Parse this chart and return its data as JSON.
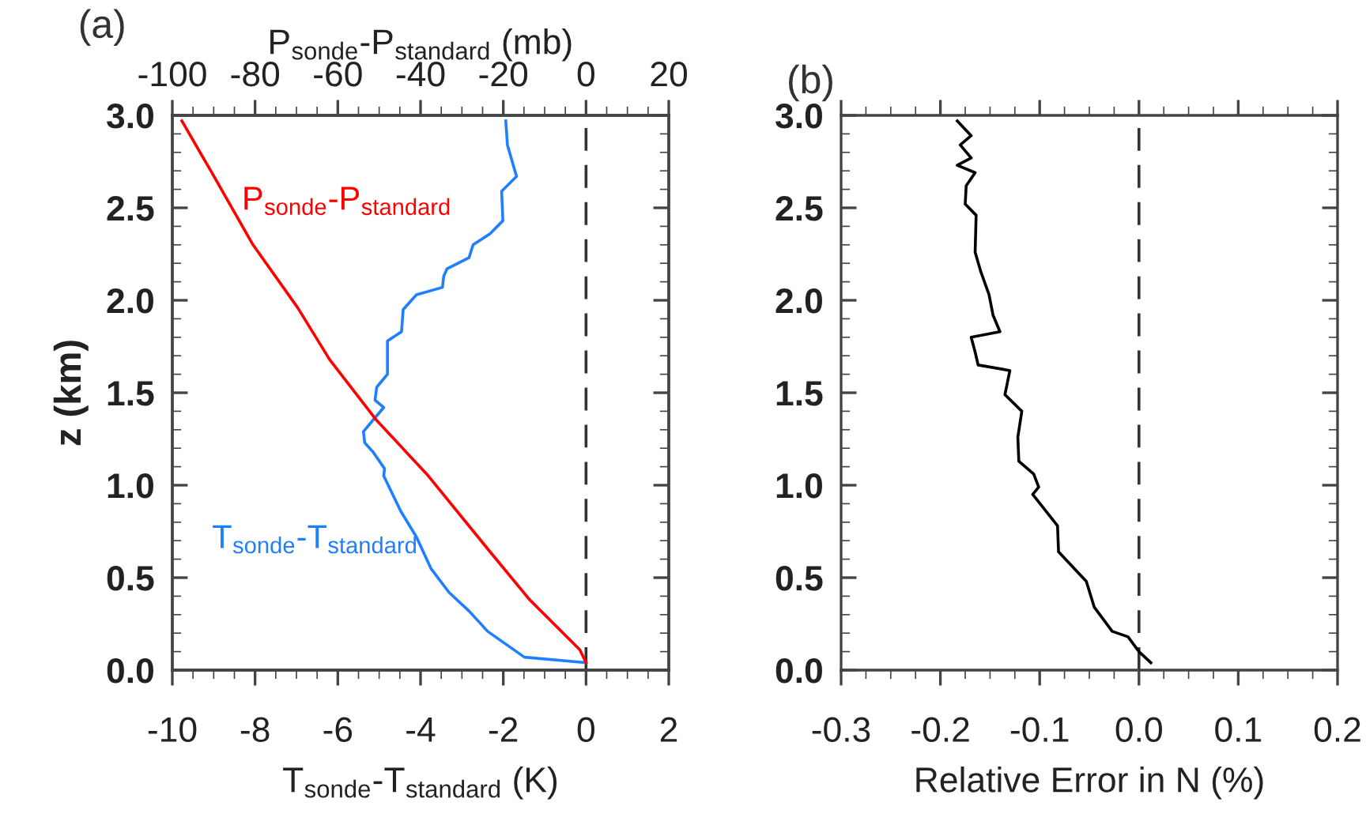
{
  "chart_data": [
    {
      "type": "line",
      "title": "(a)",
      "xlabel": "T$_{sonde}$-T$_{standard}$ (K)",
      "x2label": "P$_{sonde}$-P$_{standard}$ (mb)",
      "ylabel": "z (km)",
      "xlim": [
        -10,
        2
      ],
      "xticks": [
        -10,
        -8,
        -6,
        -4,
        -2,
        0,
        2
      ],
      "x2lim": [
        -100,
        20
      ],
      "x2ticks": [
        -100,
        -80,
        -60,
        -40,
        -20,
        0,
        20
      ],
      "ylim": [
        0,
        3.0
      ],
      "yticks": [
        {
          "value": 0,
          "label": "0.0"
        },
        0.5,
        {
          "value": 1,
          "label": "1.0"
        },
        1.5,
        {
          "value": 2,
          "label": "2.0"
        },
        2.5,
        {
          "value": 3,
          "label": "3.0"
        }
      ],
      "grid": false,
      "legend": false,
      "ref_lines": [
        {
          "axis": "x",
          "value": 0,
          "color": "#333333",
          "line_style": "dashed"
        }
      ],
      "series": [
        {
          "name": "P$_{sonde}$-P$_{standard}$",
          "color": "#ff0000",
          "axis": "x2",
          "x": [
            -97.7,
            -90.7,
            -80.5,
            -69.7,
            -62.0,
            -50.6,
            -38.5,
            -23.2,
            -13.6,
            -1.5,
            0
          ],
          "values": [
            2.97,
            2.7,
            2.3,
            1.96,
            1.68,
            1.35,
            1.06,
            0.64,
            0.38,
            0.11,
            0.04
          ]
        },
        {
          "name": "T$_{sonde}$-T$_{standard}$",
          "color": "#1f7fff",
          "x": [
            -1.94,
            -1.9,
            -1.68,
            -2.04,
            -2.01,
            -2.32,
            -2.73,
            -2.83,
            -3.36,
            -3.44,
            -3.47,
            -4.1,
            -4.42,
            -4.46,
            -4.8,
            -4.8,
            -5.06,
            -5.1,
            -4.89,
            -5.12,
            -5.38,
            -5.35,
            -5.15,
            -4.87,
            -4.89,
            -4.48,
            -4.1,
            -3.75,
            -3.31,
            -2.83,
            -2.38,
            -1.49,
            0
          ],
          "values": [
            2.97,
            2.84,
            2.67,
            2.59,
            2.43,
            2.36,
            2.3,
            2.23,
            2.17,
            2.13,
            2.07,
            2.03,
            1.95,
            1.83,
            1.78,
            1.6,
            1.53,
            1.46,
            1.42,
            1.36,
            1.29,
            1.23,
            1.18,
            1.09,
            1.05,
            0.86,
            0.72,
            0.55,
            0.42,
            0.32,
            0.21,
            0.07,
            0.04
          ]
        }
      ]
    },
    {
      "type": "line",
      "title": "(b)",
      "xlabel": "Relative Error in N (%)",
      "xlim": [
        -0.3,
        0.2
      ],
      "xticks": [
        -0.3,
        -0.2,
        -0.1,
        {
          "value": 0,
          "label": "0.0"
        },
        0.1,
        0.2
      ],
      "ylim": [
        0,
        3.0
      ],
      "yticks": [
        {
          "value": 0,
          "label": "0.0"
        },
        0.5,
        {
          "value": 1,
          "label": "1.0"
        },
        1.5,
        {
          "value": 2,
          "label": "2.0"
        },
        2.5,
        {
          "value": 3,
          "label": "3.0"
        }
      ],
      "grid": false,
      "legend": false,
      "ref_lines": [
        {
          "axis": "x",
          "value": 0,
          "color": "#333333",
          "line_style": "dashed"
        }
      ],
      "series": [
        {
          "color": "#000000",
          "x": [
            -0.183,
            -0.169,
            -0.18,
            -0.169,
            -0.183,
            -0.165,
            -0.174,
            -0.175,
            -0.164,
            -0.165,
            -0.159,
            -0.151,
            -0.147,
            -0.14,
            -0.169,
            -0.165,
            -0.162,
            -0.13,
            -0.135,
            -0.118,
            -0.122,
            -0.121,
            -0.106,
            -0.101,
            -0.107,
            -0.082,
            -0.081,
            -0.053,
            -0.045,
            -0.027,
            -0.011,
            0,
            0.012
          ],
          "values": [
            2.97,
            2.89,
            2.84,
            2.77,
            2.73,
            2.69,
            2.62,
            2.52,
            2.46,
            2.26,
            2.15,
            2.03,
            1.92,
            1.83,
            1.8,
            1.72,
            1.65,
            1.62,
            1.49,
            1.4,
            1.26,
            1.13,
            1.06,
            0.99,
            0.95,
            0.78,
            0.64,
            0.48,
            0.34,
            0.21,
            0.18,
            0.1,
            0.04
          ]
        }
      ]
    }
  ]
}
